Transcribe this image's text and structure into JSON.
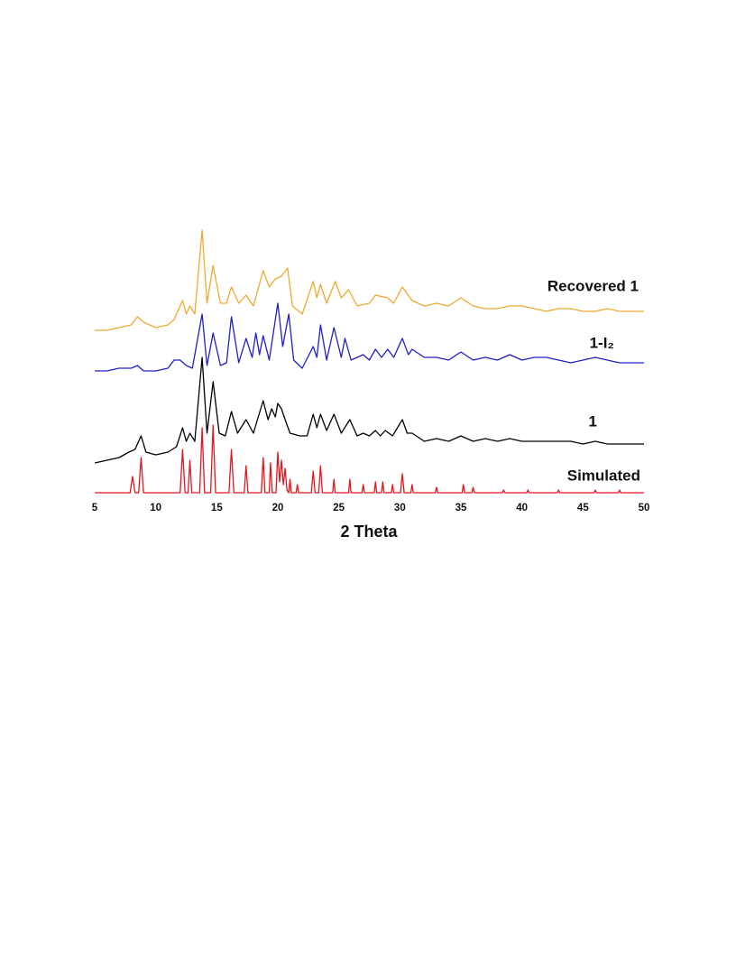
{
  "chart_data": {
    "type": "line",
    "xlabel": "2 Theta",
    "xlim": [
      5,
      50
    ],
    "xticks": [
      5,
      10,
      15,
      20,
      25,
      30,
      35,
      40,
      45,
      50
    ],
    "ylim": [
      0,
      100
    ],
    "series": [
      {
        "name": "Recovered 1",
        "color": "#f0a830",
        "x": [
          5,
          6,
          7,
          8,
          8.5,
          9,
          10,
          11,
          11.5,
          12.2,
          12.5,
          12.8,
          13.2,
          13.8,
          14.2,
          14.7,
          15.3,
          15.8,
          16.2,
          16.8,
          17.4,
          18,
          18.8,
          19.3,
          19.8,
          20.3,
          20.8,
          21.2,
          22,
          22.9,
          23.2,
          23.5,
          24,
          24.7,
          25.2,
          25.8,
          26.5,
          27.5,
          28,
          29,
          29.5,
          30.2,
          31,
          32,
          33,
          34,
          35,
          36,
          37,
          38,
          39,
          40,
          41,
          42,
          43,
          44,
          45,
          46,
          47,
          48,
          49,
          50
        ],
        "values": [
          60,
          60,
          61,
          62,
          65,
          63,
          61,
          62,
          64,
          71,
          66,
          69,
          66,
          97,
          70,
          84,
          70,
          70,
          76,
          70,
          73,
          69,
          82,
          76,
          79,
          80,
          83,
          69,
          66,
          78,
          72,
          77,
          70,
          78,
          72,
          75,
          69,
          70,
          73,
          72,
          70,
          76,
          71,
          69,
          70,
          69,
          72,
          69,
          68,
          68,
          69,
          69,
          68,
          67,
          68,
          68,
          67,
          67,
          68,
          67,
          67,
          67
        ]
      },
      {
        "name": "1-I₂",
        "color": "#2020c8",
        "x": [
          5,
          6,
          7,
          8,
          8.5,
          9,
          10,
          11,
          11.5,
          12,
          12.5,
          13,
          13.8,
          14.2,
          14.7,
          15.3,
          15.8,
          16.2,
          16.8,
          17.4,
          17.9,
          18.2,
          18.5,
          18.8,
          19.3,
          20,
          20.4,
          20.9,
          21.3,
          22,
          22.9,
          23.2,
          23.5,
          24,
          24.6,
          25.2,
          25.5,
          26,
          27,
          27.5,
          28,
          28.5,
          29,
          29.5,
          30.2,
          30.7,
          31,
          32,
          33,
          34,
          35,
          36,
          37,
          38,
          39,
          40,
          41,
          42,
          43,
          44,
          45,
          46,
          47,
          48,
          49,
          50
        ],
        "values": [
          45,
          45,
          46,
          46,
          47,
          45,
          45,
          46,
          49,
          49,
          47,
          46,
          66,
          47,
          59,
          47,
          48,
          65,
          48,
          57,
          50,
          59,
          51,
          58,
          49,
          70,
          54,
          66,
          49,
          46,
          54,
          50,
          62,
          49,
          61,
          50,
          57,
          49,
          51,
          49,
          53,
          50,
          53,
          50,
          57,
          51,
          53,
          50,
          50,
          49,
          52,
          49,
          50,
          49,
          51,
          49,
          50,
          50,
          49,
          48,
          49,
          50,
          49,
          48,
          48,
          48
        ]
      },
      {
        "name": "1",
        "color": "#000000",
        "x": [
          5,
          6,
          7,
          7.8,
          8.3,
          8.8,
          9.2,
          10,
          11,
          11.7,
          12.2,
          12.5,
          12.8,
          13.2,
          13.8,
          14.2,
          14.7,
          15.2,
          15.7,
          16.2,
          16.7,
          17.4,
          18,
          18.8,
          19.2,
          19.5,
          19.8,
          20,
          20.3,
          20.6,
          21,
          21.8,
          22.4,
          22.9,
          23.2,
          23.5,
          24,
          24.6,
          25.2,
          25.9,
          26.5,
          27,
          27.5,
          28,
          28.4,
          28.8,
          29.4,
          30.2,
          30.6,
          31,
          32,
          33,
          34,
          35,
          36,
          37,
          38,
          39,
          40,
          41,
          42,
          43,
          44,
          45,
          46,
          47,
          48,
          49,
          50
        ],
        "values": [
          11,
          12,
          13,
          15,
          16,
          21,
          15,
          14,
          15,
          17,
          24,
          19,
          22,
          19,
          50,
          22,
          41,
          22,
          21,
          30,
          22,
          27,
          22,
          34,
          27,
          31,
          28,
          33,
          31,
          27,
          22,
          21,
          21,
          29,
          24,
          29,
          23,
          29,
          22,
          27,
          21,
          22,
          21,
          23,
          21,
          23,
          21,
          27,
          22,
          22,
          19,
          20,
          19,
          21,
          19,
          20,
          19,
          20,
          19,
          19,
          19,
          19,
          19,
          18,
          19,
          18,
          18,
          18,
          18
        ]
      },
      {
        "name": "Simulated",
        "color": "#e8141c",
        "x": [
          5,
          7.9,
          8.1,
          8.3,
          8.6,
          8.8,
          9,
          12,
          12.2,
          12.4,
          12.65,
          12.8,
          12.95,
          13.6,
          13.8,
          14,
          14.5,
          14.7,
          14.9,
          16,
          16.2,
          16.4,
          17.25,
          17.4,
          17.55,
          18.65,
          18.8,
          18.95,
          19.3,
          19.4,
          19.55,
          19.85,
          20,
          20.15,
          20.3,
          20.45,
          20.6,
          20.75,
          20.9,
          21,
          21.1,
          21.5,
          21.6,
          21.7,
          22.75,
          22.9,
          23.05,
          23.35,
          23.5,
          23.65,
          24.5,
          24.6,
          24.7,
          25.8,
          25.9,
          26,
          26.9,
          27,
          27.1,
          27.9,
          28,
          28.1,
          28.5,
          28.6,
          28.7,
          29.3,
          29.4,
          29.5,
          30.05,
          30.2,
          30.35,
          30.9,
          31,
          31.1,
          32.9,
          33,
          33.1,
          35.1,
          35.2,
          35.3,
          35.9,
          36,
          36.1,
          38.4,
          38.5,
          38.6,
          40.4,
          40.5,
          40.6,
          42.9,
          43,
          43.1,
          45.9,
          46,
          46.1,
          47.9,
          48,
          48.1,
          50
        ],
        "values": [
          0,
          0,
          6,
          0,
          0,
          13,
          0,
          0,
          16,
          0,
          0,
          12,
          0,
          0,
          24,
          0,
          0,
          25,
          0,
          0,
          16,
          0,
          0,
          10,
          0,
          0,
          13,
          0,
          0,
          11,
          0,
          0,
          15,
          4,
          12,
          3,
          9,
          1,
          0,
          5,
          0,
          0,
          3,
          0,
          0,
          8,
          0,
          0,
          10,
          0,
          0,
          5,
          0,
          0,
          5,
          0,
          0,
          3,
          0,
          0,
          4,
          0,
          0,
          4,
          0,
          0,
          3,
          0,
          0,
          7,
          0,
          0,
          3,
          0,
          0,
          2,
          0,
          0,
          3,
          0,
          0,
          2,
          0,
          0,
          1,
          0,
          0,
          1,
          0,
          0,
          1,
          0,
          0,
          1,
          0,
          0,
          1,
          0,
          0
        ]
      }
    ]
  }
}
